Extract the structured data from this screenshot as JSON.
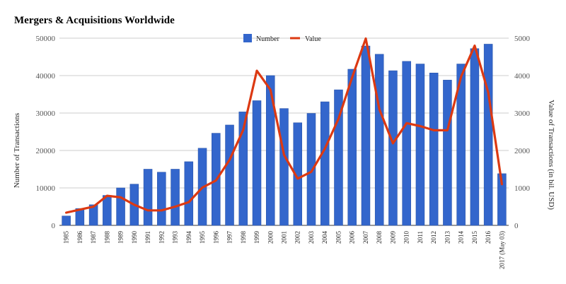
{
  "chart_data": {
    "type": "bar",
    "title": "Mergers & Acquisitions Worldwide",
    "ylabel_left": "Number of Transactions",
    "ylabel_right": "Value of Transactions (in bil. USD)",
    "ylim_left": [
      0,
      50000
    ],
    "ylim_right": [
      0,
      5000
    ],
    "yticks_left": [
      0,
      10000,
      20000,
      30000,
      40000,
      50000
    ],
    "yticks_right": [
      0,
      1000,
      2000,
      3000,
      4000,
      5000
    ],
    "grid": true,
    "legend_position": "top",
    "categories": [
      "1985",
      "1986",
      "1987",
      "1988",
      "1989",
      "1990",
      "1991",
      "1992",
      "1993",
      "1994",
      "1995",
      "1996",
      "1997",
      "1998",
      "1999",
      "2000",
      "2001",
      "2002",
      "2003",
      "2004",
      "2005",
      "2006",
      "2007",
      "2008",
      "2009",
      "2010",
      "2011",
      "2012",
      "2013",
      "2014",
      "2015",
      "2016",
      "2017 (May 03)"
    ],
    "series": [
      {
        "name": "Number",
        "type": "bar",
        "axis": "left",
        "color": "#3366cc",
        "values": [
          2500,
          4500,
          5500,
          8000,
          10000,
          11000,
          15000,
          14200,
          15000,
          17000,
          20600,
          24600,
          26800,
          30300,
          33300,
          40000,
          31200,
          27400,
          29900,
          33000,
          36200,
          41700,
          47900,
          45700,
          41300,
          43800,
          43100,
          40700,
          38800,
          43100,
          47200,
          48400,
          13800
        ]
      },
      {
        "name": "Value",
        "type": "line",
        "axis": "right",
        "color": "#dc3912",
        "values": [
          340,
          420,
          500,
          790,
          750,
          550,
          400,
          400,
          500,
          620,
          1010,
          1200,
          1750,
          2550,
          4130,
          3620,
          1880,
          1250,
          1430,
          2050,
          2850,
          3950,
          4990,
          3100,
          2190,
          2730,
          2650,
          2540,
          2540,
          3970,
          4800,
          3550,
          1100
        ]
      }
    ]
  }
}
